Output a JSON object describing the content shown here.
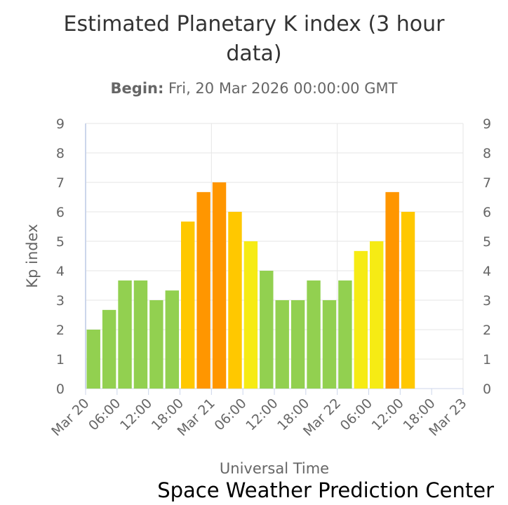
{
  "chart_data": {
    "type": "bar",
    "title": "Estimated Planetary K index (3 hour data)",
    "subtitle_label": "Begin:",
    "subtitle_value": "Fri, 20 Mar 2026 00:00:00 GMT",
    "xlabel": "Universal Time",
    "ylabel": "Kp index",
    "ylim": [
      0,
      9
    ],
    "yticks": [
      "0",
      "1",
      "2",
      "3",
      "4",
      "5",
      "6",
      "7",
      "8",
      "9"
    ],
    "xlim_hours": [
      0,
      72
    ],
    "xticks": [
      {
        "hour": 0,
        "label": "Mar 20"
      },
      {
        "hour": 6,
        "label": "06:00"
      },
      {
        "hour": 12,
        "label": "12:00"
      },
      {
        "hour": 18,
        "label": "18:00"
      },
      {
        "hour": 24,
        "label": "Mar 21"
      },
      {
        "hour": 30,
        "label": "06:00"
      },
      {
        "hour": 36,
        "label": "12:00"
      },
      {
        "hour": 42,
        "label": "18:00"
      },
      {
        "hour": 48,
        "label": "Mar 22"
      },
      {
        "hour": 54,
        "label": "06:00"
      },
      {
        "hour": 60,
        "label": "12:00"
      },
      {
        "hour": 66,
        "label": "18:00"
      },
      {
        "hour": 72,
        "label": "Mar 23"
      }
    ],
    "bar_hour_width": 3,
    "values": [
      2.0,
      2.67,
      3.67,
      3.67,
      3.0,
      3.33,
      5.67,
      6.67,
      7.0,
      6.0,
      5.0,
      4.0,
      3.0,
      3.0,
      3.67,
      3.0,
      3.67,
      4.67,
      5.0,
      6.67,
      6.0
    ],
    "colors": {
      "below5": "#92d050",
      "level5": "#f6eb14",
      "level6": "#ffc800",
      "level7": "#ff9600",
      "level8": "#ff0000",
      "level9": "#c80000"
    },
    "grid": true,
    "right_axis_mirror": true
  },
  "footer": "Space Weather Prediction Center"
}
